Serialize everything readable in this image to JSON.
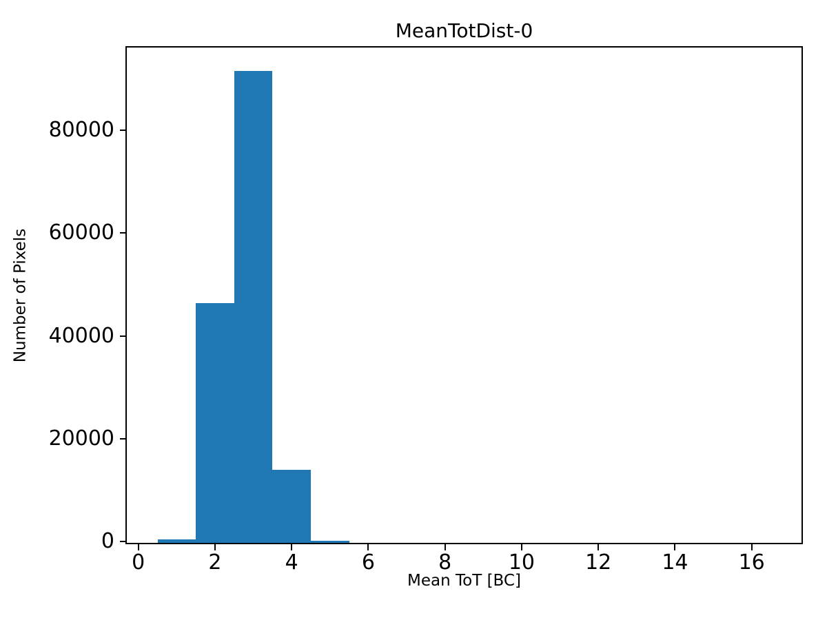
{
  "figure": {
    "background": "#ffffff",
    "text_color": "#000000"
  },
  "chart_data": {
    "type": "bar",
    "subtype": "histogram",
    "title": "MeanTotDist-0",
    "xlabel": "Mean ToT [BC]",
    "ylabel": "Number of Pixels",
    "bar_color": "#1f77b4",
    "axis_color": "#000000",
    "grid": false,
    "legend_position": "none",
    "bin_width": 1,
    "bins": [
      {
        "x0": 0.5,
        "x1": 1.5,
        "count": 650
      },
      {
        "x0": 1.5,
        "x1": 2.5,
        "count": 46700
      },
      {
        "x0": 2.5,
        "x1": 3.5,
        "count": 91800
      },
      {
        "x0": 3.5,
        "x1": 4.5,
        "count": 14200
      },
      {
        "x0": 4.5,
        "x1": 5.5,
        "count": 350
      }
    ],
    "xlim": [
      -0.3,
      17.3
    ],
    "ylim": [
      0,
      96400
    ],
    "xticks": [
      0,
      2,
      4,
      6,
      8,
      10,
      12,
      14,
      16
    ],
    "yticks": [
      0,
      20000,
      40000,
      60000,
      80000
    ]
  }
}
